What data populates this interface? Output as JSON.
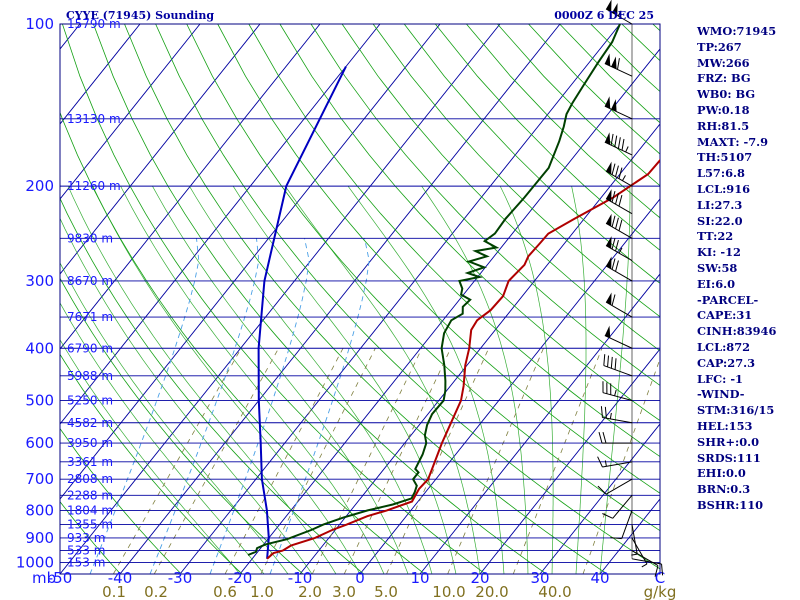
{
  "title": {
    "left": "CYYE (71945) Sounding",
    "right": "0000Z  6 DEC 25"
  },
  "colors": {
    "isobar": "#0000a0",
    "isotherm": "#0000a0",
    "dry_adiabat": "#14a014",
    "moist_adiabat": "#14a014",
    "mixing_ratio": "#808040",
    "temperature": "#b00000",
    "dewpoint": "#004000",
    "parcel": "#0000c0",
    "dashed_blue": "#4aa0e6",
    "pressure_label": "#1a1aff",
    "mixing_label": "#807020",
    "panel_text": "#000080"
  },
  "chart_data": {
    "type": "skew-t",
    "x_unit": "C",
    "pressure_unit": "mb",
    "mixing_unit": "g/kg",
    "pressure_levels": [
      100,
      200,
      300,
      400,
      500,
      600,
      700,
      800,
      900,
      1000
    ],
    "pressure_labels": [
      "100",
      "200",
      "300",
      "400",
      "500",
      "600",
      "700",
      "800",
      "900",
      "1000"
    ],
    "temperature_ticks": [
      "-50",
      "-40",
      "-30",
      "-20",
      "-10",
      "0",
      "10",
      "20",
      "30",
      "40"
    ],
    "temperature_tick_values": [
      -50,
      -40,
      -30,
      -20,
      -10,
      0,
      10,
      20,
      30,
      40
    ],
    "x_range": [
      -50,
      50
    ],
    "mixing_ratio_labels": [
      "0.1",
      "0.2",
      "0.6",
      "1.0",
      "2.0",
      "3.0",
      "5.0",
      "10.0",
      "20.0",
      "40.0"
    ],
    "mixing_ratio_values": [
      0.1,
      0.2,
      0.6,
      1.0,
      2.0,
      3.0,
      5.0,
      10.0,
      20.0,
      40.0
    ],
    "heights": [
      {
        "p": 100,
        "label": "15790 m"
      },
      {
        "p": 150,
        "label": "13130 m"
      },
      {
        "p": 200,
        "label": "11260 m"
      },
      {
        "p": 250,
        "label": "9830 m"
      },
      {
        "p": 300,
        "label": "8670 m"
      },
      {
        "p": 350,
        "label": "7671 m"
      },
      {
        "p": 400,
        "label": "6790 m"
      },
      {
        "p": 450,
        "label": "5988 m"
      },
      {
        "p": 500,
        "label": "5250 m"
      },
      {
        "p": 550,
        "label": "4582 m"
      },
      {
        "p": 600,
        "label": "3950 m"
      },
      {
        "p": 650,
        "label": "3361 m"
      },
      {
        "p": 700,
        "label": "2808 m"
      },
      {
        "p": 750,
        "label": "2288 m"
      },
      {
        "p": 800,
        "label": "1804 m"
      },
      {
        "p": 850,
        "label": "1355 m"
      },
      {
        "p": 900,
        "label": "933 m"
      },
      {
        "p": 950,
        "label": "533 m"
      },
      {
        "p": 1000,
        "label": "153 m"
      }
    ],
    "temperature_profile": [
      [
        984,
        -17.5
      ],
      [
        960,
        -17.2
      ],
      [
        950,
        -16.0
      ],
      [
        930,
        -15.3
      ],
      [
        900,
        -12.3
      ],
      [
        870,
        -10.5
      ],
      [
        850,
        -8.8
      ],
      [
        820,
        -6.5
      ],
      [
        800,
        -4.0
      ],
      [
        770,
        -1.0
      ],
      [
        730,
        -1.5
      ],
      [
        700,
        -1.3
      ],
      [
        670,
        -2.0
      ],
      [
        600,
        -3.8
      ],
      [
        550,
        -5.0
      ],
      [
        500,
        -6.3
      ],
      [
        470,
        -7.8
      ],
      [
        430,
        -10.3
      ],
      [
        400,
        -11.9
      ],
      [
        370,
        -14.0
      ],
      [
        355,
        -14.3
      ],
      [
        340,
        -13.4
      ],
      [
        320,
        -13.2
      ],
      [
        300,
        -14.3
      ],
      [
        280,
        -13.8
      ],
      [
        270,
        -14.3
      ],
      [
        255,
        -14.1
      ],
      [
        245,
        -14.0
      ],
      [
        230,
        -11.6
      ],
      [
        210,
        -8.0
      ],
      [
        190,
        -5.3
      ],
      [
        175,
        -5.1
      ],
      [
        165,
        -5.0
      ],
      [
        150,
        -4.4
      ],
      [
        145,
        -4.8
      ],
      [
        135,
        -3.2
      ],
      [
        125,
        -4.3
      ],
      [
        115,
        -4.6
      ],
      [
        105,
        -4.6
      ],
      [
        100,
        -5.0
      ]
    ],
    "dewpoint_profile": [
      [
        968,
        -21.2
      ],
      [
        955,
        -20.3
      ],
      [
        940,
        -20.6
      ],
      [
        925,
        -19.7
      ],
      [
        905,
        -16.8
      ],
      [
        870,
        -14.0
      ],
      [
        850,
        -12.7
      ],
      [
        825,
        -10.3
      ],
      [
        800,
        -7.2
      ],
      [
        780,
        -3.8
      ],
      [
        760,
        -1.5
      ],
      [
        740,
        -1.8
      ],
      [
        720,
        -2.3
      ],
      [
        700,
        -3.8
      ],
      [
        680,
        -3.8
      ],
      [
        670,
        -4.8
      ],
      [
        630,
        -5.5
      ],
      [
        600,
        -6.4
      ],
      [
        580,
        -7.7
      ],
      [
        555,
        -8.7
      ],
      [
        530,
        -9.3
      ],
      [
        500,
        -9.2
      ],
      [
        480,
        -10.2
      ],
      [
        460,
        -11.5
      ],
      [
        430,
        -13.8
      ],
      [
        400,
        -16.5
      ],
      [
        375,
        -18.1
      ],
      [
        355,
        -18.6
      ],
      [
        345,
        -17.6
      ],
      [
        335,
        -18.5
      ],
      [
        325,
        -18.2
      ],
      [
        318,
        -20.4
      ],
      [
        310,
        -21.0
      ],
      [
        300,
        -22.5
      ],
      [
        295,
        -19.7
      ],
      [
        290,
        -22.2
      ],
      [
        283,
        -20.2
      ],
      [
        276,
        -23.5
      ],
      [
        270,
        -21.2
      ],
      [
        264,
        -23.8
      ],
      [
        260,
        -20.8
      ],
      [
        253,
        -23.6
      ],
      [
        245,
        -22.9
      ],
      [
        230,
        -23.1
      ],
      [
        210,
        -22.8
      ],
      [
        185,
        -22.7
      ],
      [
        165,
        -24.5
      ],
      [
        155,
        -25.7
      ],
      [
        147,
        -26.9
      ],
      [
        140,
        -27.4
      ],
      [
        130,
        -27.9
      ],
      [
        118,
        -28.5
      ],
      [
        108,
        -28.9
      ],
      [
        100,
        -30.0
      ]
    ],
    "parcel_path": [
      [
        120,
        -70
      ],
      [
        200,
        -64
      ],
      [
        300,
        -55
      ],
      [
        400,
        -47
      ],
      [
        500,
        -40
      ],
      [
        600,
        -34
      ],
      [
        700,
        -29
      ],
      [
        800,
        -24
      ],
      [
        900,
        -20
      ],
      [
        984,
        -17.5
      ]
    ],
    "wind_barbs": [
      {
        "p": 100,
        "dir": 300,
        "spd": 105
      },
      {
        "p": 125,
        "dir": 295,
        "spd": 110
      },
      {
        "p": 150,
        "dir": 295,
        "spd": 100
      },
      {
        "p": 175,
        "dir": 295,
        "spd": 95
      },
      {
        "p": 200,
        "dir": 300,
        "spd": 85
      },
      {
        "p": 225,
        "dir": 300,
        "spd": 80
      },
      {
        "p": 250,
        "dir": 300,
        "spd": 80
      },
      {
        "p": 275,
        "dir": 300,
        "spd": 75
      },
      {
        "p": 300,
        "dir": 300,
        "spd": 70
      },
      {
        "p": 350,
        "dir": 300,
        "spd": 60
      },
      {
        "p": 400,
        "dir": 295,
        "spd": 50
      },
      {
        "p": 450,
        "dir": 290,
        "spd": 40
      },
      {
        "p": 500,
        "dir": 285,
        "spd": 35
      },
      {
        "p": 550,
        "dir": 280,
        "spd": 25
      },
      {
        "p": 600,
        "dir": 270,
        "spd": 20
      },
      {
        "p": 650,
        "dir": 260,
        "spd": 15
      },
      {
        "p": 700,
        "dir": 240,
        "spd": 10
      },
      {
        "p": 750,
        "dir": 220,
        "spd": 10
      },
      {
        "p": 800,
        "dir": 200,
        "spd": 10
      },
      {
        "p": 850,
        "dir": 170,
        "spd": 5
      },
      {
        "p": 900,
        "dir": 150,
        "spd": 5
      },
      {
        "p": 950,
        "dir": 120,
        "spd": 10
      },
      {
        "p": 984,
        "dir": 100,
        "spd": 10
      }
    ]
  },
  "indices": [
    "WMO:71945",
    "TP:267",
    "MW:266",
    "FRZ: BG",
    "WB0: BG",
    "PW:0.18",
    "RH:81.5",
    "MAXT: -7.9",
    "TH:5107",
    "L57:6.8",
    "LCL:916",
    "LI:27.3",
    "SI:22.0",
    "TT:22",
    "KI: -12",
    "SW:58",
    "EI:6.0",
    "-PARCEL-",
    "CAPE:31",
    "CINH:83946",
    "LCL:872",
    "CAP:27.3",
    "LFC: -1",
    "-WIND-",
    "STM:316/15",
    "HEL:153",
    "SHR+:0.0",
    "SRDS:111",
    "EHI:0.0",
    "BRN:0.3",
    "BSHR:110"
  ]
}
